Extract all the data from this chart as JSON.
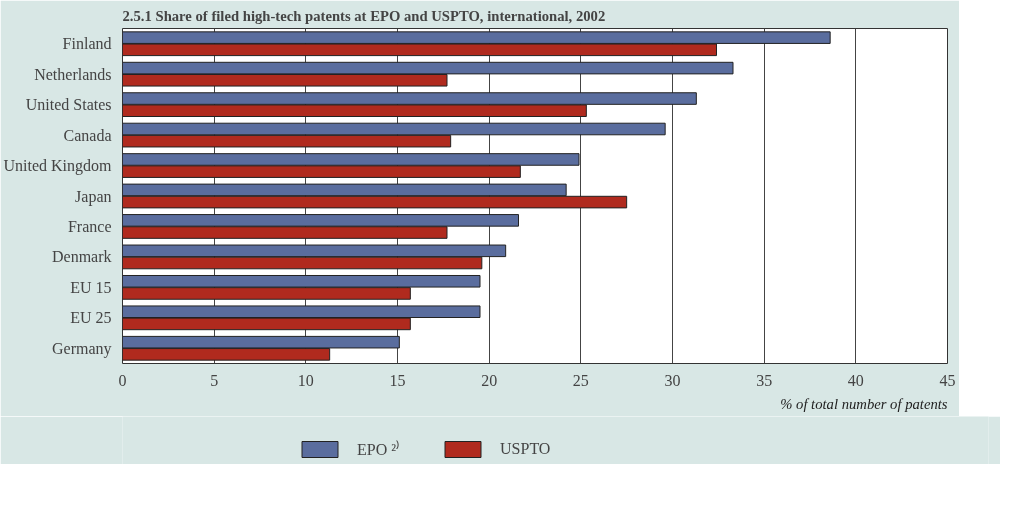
{
  "chart_data": {
    "type": "bar",
    "orientation": "horizontal",
    "title": "2.5.1 Share of filed high-tech patents at EPO and USPTO, international, 2002",
    "xlabel": "% of total number of patents",
    "categories": [
      "Finland",
      "Netherlands",
      "United States",
      "Canada",
      "United Kingdom",
      "Japan",
      "France",
      "Denmark",
      "EU 15",
      "EU 25",
      "Germany"
    ],
    "series": [
      {
        "name": "EPO ²⁾",
        "color": "#5a6d9e",
        "values": [
          38.6,
          33.3,
          31.3,
          29.6,
          24.9,
          24.2,
          21.6,
          20.9,
          19.5,
          19.5,
          15.1
        ]
      },
      {
        "name": "USPTO",
        "color": "#b02a1e",
        "values": [
          32.4,
          17.7,
          25.3,
          17.9,
          21.7,
          27.5,
          17.7,
          19.6,
          15.7,
          15.7,
          11.3
        ]
      }
    ],
    "xlim": [
      0,
      45
    ],
    "xticks": [
      0,
      5,
      10,
      15,
      20,
      25,
      30,
      35,
      40,
      45
    ],
    "grid": "x",
    "legend": "bottom left"
  }
}
